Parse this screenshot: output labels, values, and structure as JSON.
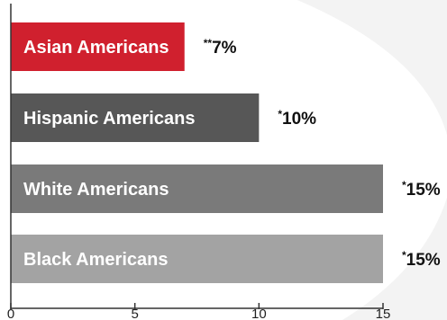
{
  "chart_data": {
    "type": "bar",
    "orientation": "horizontal",
    "categories": [
      "Asian Americans",
      "Hispanic Americans",
      "White Americans",
      "Black Americans"
    ],
    "values": [
      7,
      10,
      15,
      15
    ],
    "value_labels": [
      {
        "mark": "**",
        "text": "7%"
      },
      {
        "mark": "*",
        "text": "10%"
      },
      {
        "mark": "*",
        "text": "15%"
      },
      {
        "mark": "*",
        "text": "15%"
      }
    ],
    "colors": [
      "#d0202e",
      "#575757",
      "#7a7a7a",
      "#a3a3a3"
    ],
    "xlim": [
      0,
      15
    ],
    "x_ticks": [
      0,
      5,
      10,
      15
    ],
    "grid": false,
    "legend": "none",
    "background_shape_color": "#f3f3f3"
  }
}
